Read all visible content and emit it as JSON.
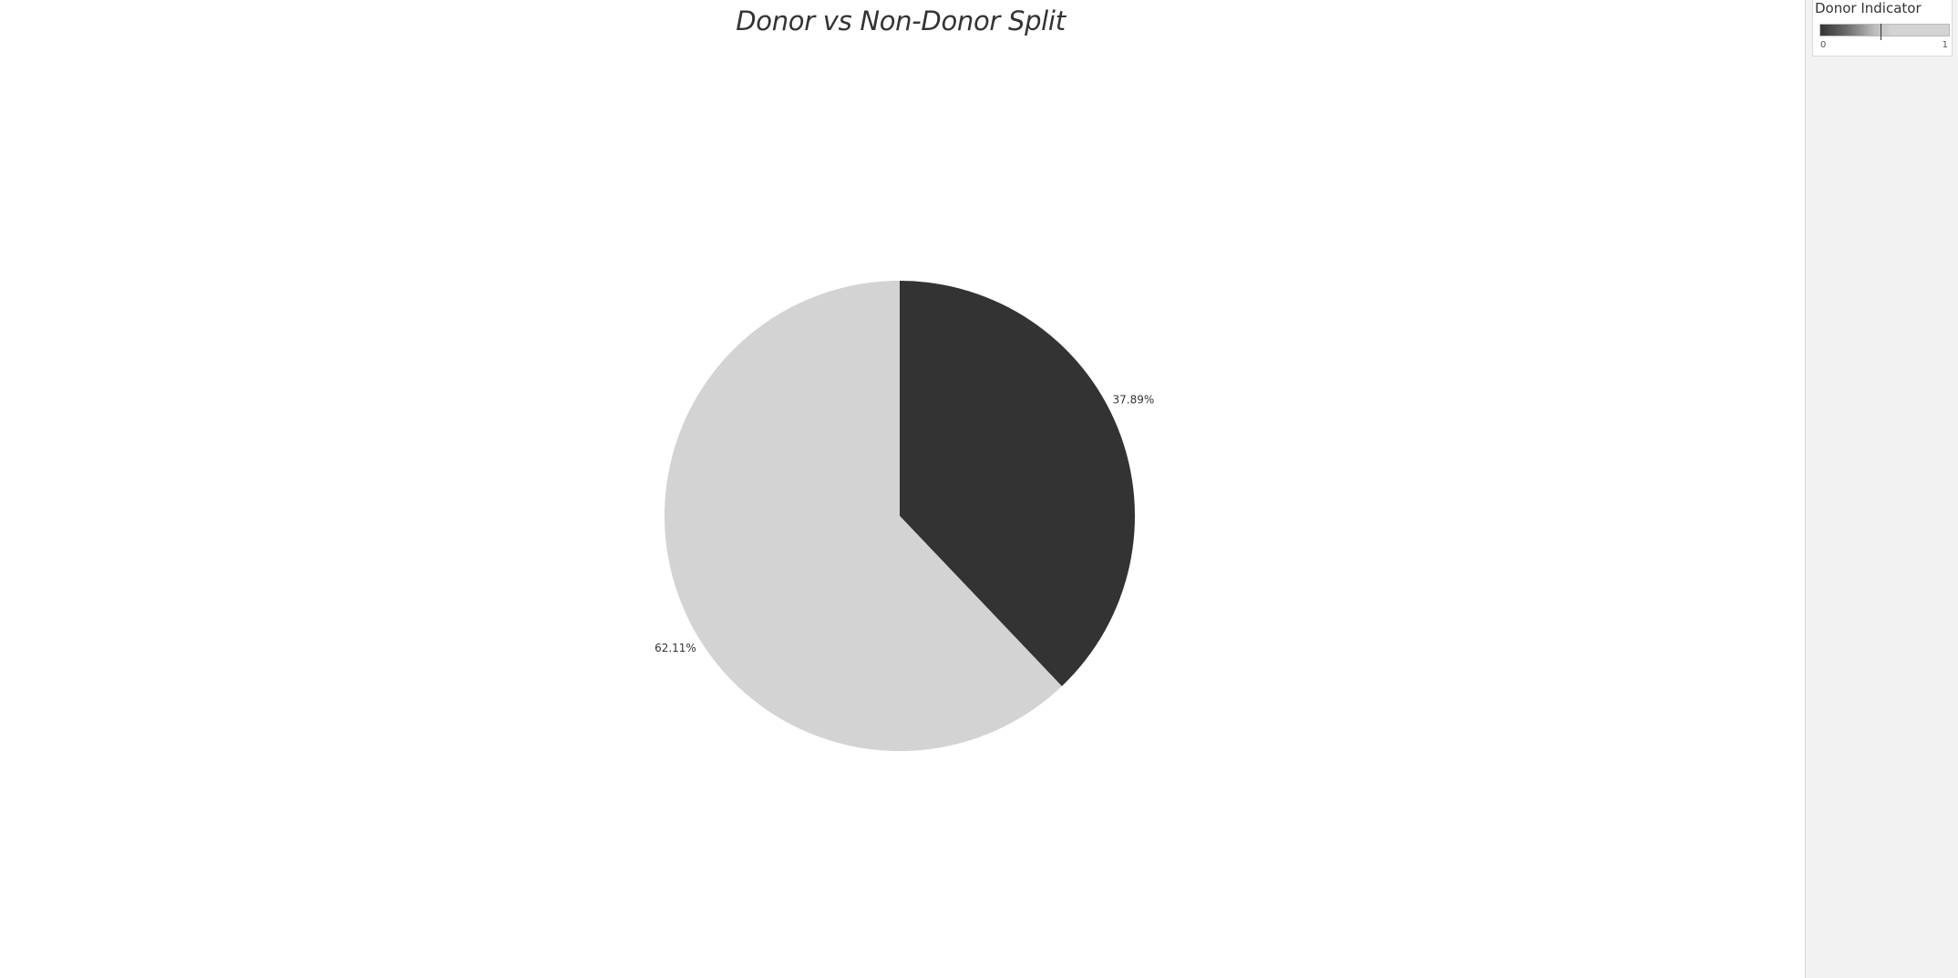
{
  "chart_data": {
    "type": "pie",
    "title": "Donor vs Non-Donor Split",
    "slices": [
      {
        "label": "37.89%",
        "value": 37.89,
        "color": "#333333"
      },
      {
        "label": "62.11%",
        "value": 62.11,
        "color": "#d3d3d3"
      }
    ],
    "legend": {
      "title": "Donor Indicator",
      "min_label": "0",
      "max_label": "1",
      "colors": [
        "#333333",
        "#d3d3d3"
      ]
    }
  }
}
